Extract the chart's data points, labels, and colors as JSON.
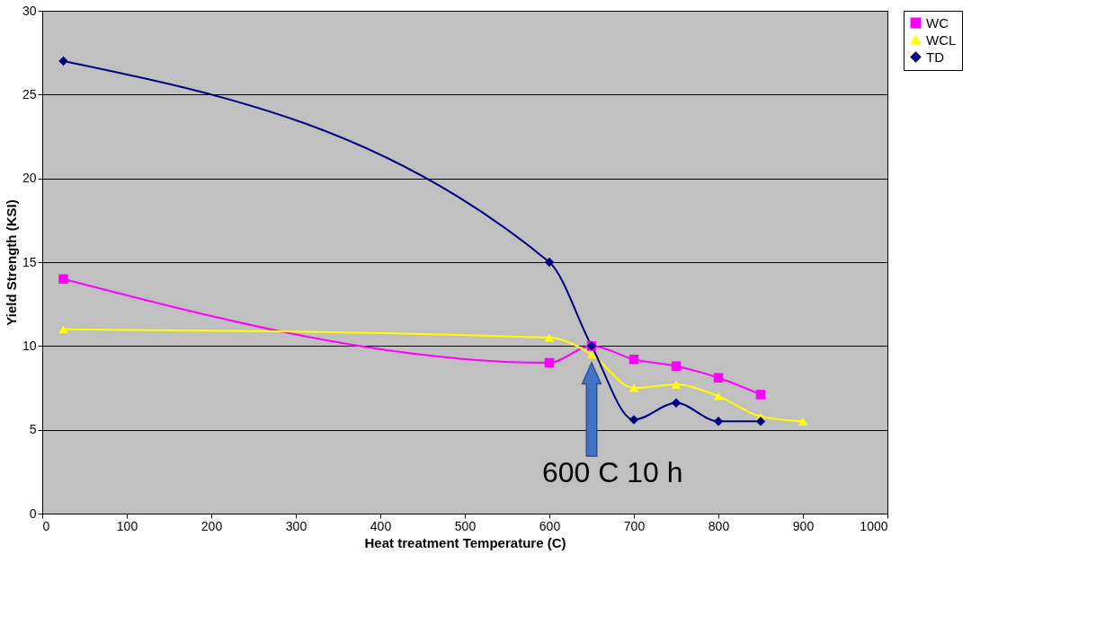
{
  "chart_data": {
    "type": "line",
    "xlabel": "Heat treatment Temperature (C)",
    "ylabel": "Yield Strength (KSI)",
    "xlim": [
      0,
      1000
    ],
    "xticks": [
      0,
      100,
      200,
      300,
      400,
      500,
      600,
      700,
      800,
      900,
      {
        "value": 1000,
        "label": "1000"
      }
    ],
    "ylim": [
      0,
      30
    ],
    "yticks": [
      0,
      5,
      10,
      15,
      20,
      25,
      30
    ],
    "grid": "y",
    "legend": "right",
    "annotations": [
      "600 C 10 h"
    ],
    "series": [
      {
        "name": "WC",
        "color": "#ff00ff",
        "marker": "square",
        "x": [
          25,
          600,
          650,
          700,
          750,
          800,
          850
        ],
        "values": [
          14,
          9,
          10,
          9.2,
          8.8,
          8.1,
          7.1
        ]
      },
      {
        "name": "WCL",
        "color": "#ffff00",
        "marker": "triangle",
        "x": [
          25,
          600,
          650,
          700,
          750,
          800,
          850,
          900
        ],
        "values": [
          11,
          10.5,
          9.5,
          7.5,
          7.7,
          7.0,
          5.8,
          5.5
        ]
      },
      {
        "name": "TD",
        "color": "#000080",
        "marker": "diamond",
        "x": [
          25,
          600,
          650,
          700,
          750,
          800,
          850
        ],
        "values": [
          27,
          15,
          10,
          5.6,
          6.6,
          5.5,
          5.5
        ]
      }
    ]
  }
}
